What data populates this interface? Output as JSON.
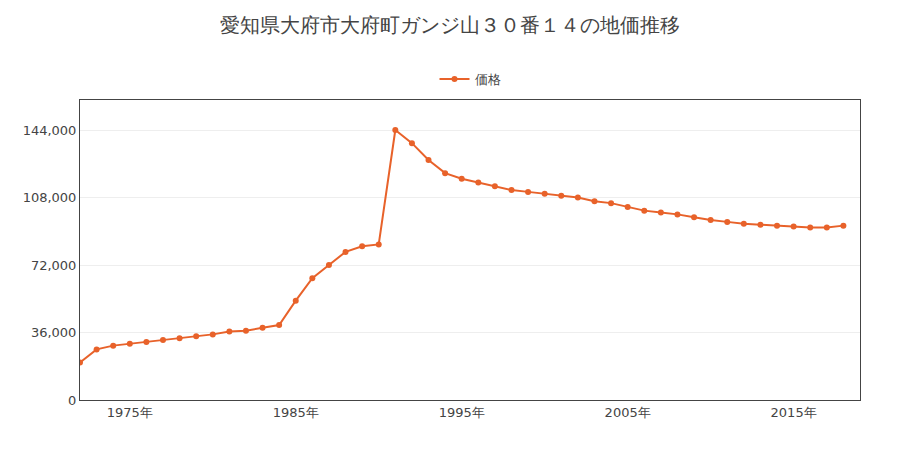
{
  "chart_data": {
    "type": "line",
    "title": "愛知県大府市大府町ガンジ山３０番１４の地価推移",
    "x": [
      1972,
      1973,
      1974,
      1975,
      1976,
      1977,
      1978,
      1979,
      1980,
      1981,
      1982,
      1983,
      1984,
      1985,
      1986,
      1987,
      1988,
      1989,
      1990,
      1991,
      1992,
      1993,
      1994,
      1995,
      1996,
      1997,
      1998,
      1999,
      2000,
      2001,
      2002,
      2003,
      2004,
      2005,
      2006,
      2007,
      2008,
      2009,
      2010,
      2011,
      2012,
      2013,
      2014,
      2015,
      2016,
      2017,
      2018
    ],
    "series": [
      {
        "name": "価格",
        "color": "#e8622a",
        "marker": "circle",
        "line_style": "solid",
        "values": [
          20000,
          27000,
          29000,
          30000,
          31000,
          32000,
          33000,
          34000,
          35000,
          36500,
          37000,
          38500,
          40000,
          53000,
          65000,
          72000,
          79000,
          82000,
          83000,
          144000,
          137000,
          128000,
          121000,
          118000,
          116000,
          114000,
          112000,
          111000,
          110000,
          109000,
          108000,
          106000,
          105000,
          103000,
          101000,
          100000,
          99000,
          97500,
          96000,
          95000,
          94000,
          93500,
          93000,
          92500,
          92000,
          92000,
          93000
        ]
      }
    ],
    "xlim": [
      1972,
      2019
    ],
    "ylim": [
      0,
      160000
    ],
    "xticks": [
      {
        "value": 1975,
        "label": "1975年"
      },
      {
        "value": 1985,
        "label": "1985年"
      },
      {
        "value": 1995,
        "label": "1995年"
      },
      {
        "value": 2005,
        "label": "2005年"
      },
      {
        "value": 2015,
        "label": "2015年"
      }
    ],
    "yticks": [
      0,
      {
        "value": 36000,
        "label": "36,000"
      },
      {
        "value": 72000,
        "label": "72,000"
      },
      {
        "value": 108000,
        "label": "108,000"
      },
      {
        "value": 144000,
        "label": "144,000"
      }
    ],
    "grid": "y",
    "legend": "top"
  }
}
